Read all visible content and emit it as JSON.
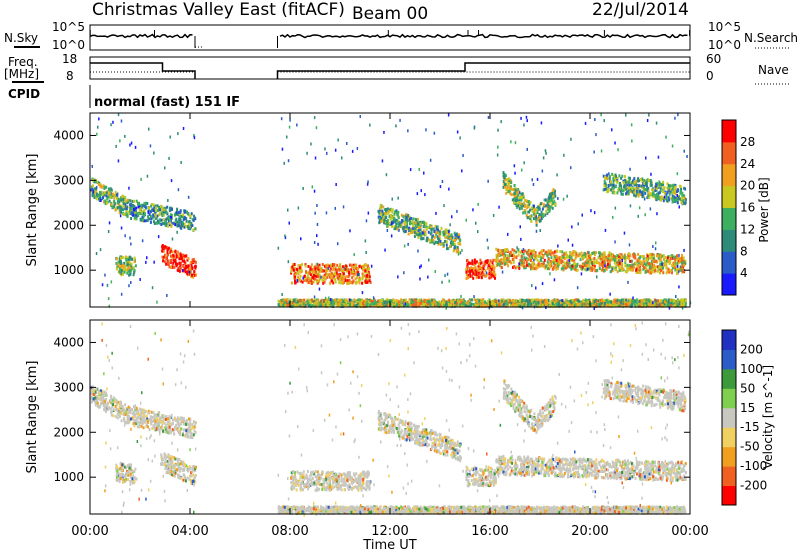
{
  "header": {
    "title": "Christmas Valley East (fitACF)",
    "beam": "Beam 00",
    "date": "22/Jul/2014"
  },
  "noise_panel": {
    "left_label": "N.Sky",
    "left_ticks": [
      "10^5",
      "10^0"
    ],
    "right_label": "N.Search",
    "right_ticks": [
      "10^5",
      "10^0"
    ]
  },
  "freq_panel": {
    "left_label_1": "Freq.",
    "left_label_2": "[MHz]",
    "left_ticks": [
      "18",
      "8"
    ],
    "right_label": "Nave",
    "right_ticks": [
      "60",
      "0"
    ]
  },
  "cpid_panel": {
    "label": "CPID",
    "mode_text": "normal (fast) 151 IF"
  },
  "chart_data": [
    {
      "type": "heatmap",
      "title": "",
      "xlabel": "Time UT",
      "ylabel": "Slant Range [km]",
      "xlim": [
        "00:00",
        "24:00"
      ],
      "ylim": [
        180,
        4500
      ],
      "x_ticks": [
        "00:00",
        "04:00",
        "08:00",
        "12:00",
        "16:00",
        "20:00",
        "00:00"
      ],
      "y_ticks": [
        "1000",
        "2000",
        "3000",
        "4000"
      ],
      "colorbar": {
        "label": "Power [dB]",
        "ticks": [
          "4",
          "8",
          "12",
          "16",
          "20",
          "24",
          "28"
        ],
        "colors": [
          "#1a1aff",
          "#2a5cc8",
          "#2e8b7a",
          "#3cb060",
          "#c8c820",
          "#f0a020",
          "#f06020",
          "#ff0000"
        ]
      },
      "data_gap_hours": [
        4.2,
        7.5
      ],
      "echo_bands": [
        {
          "t": [
            0.0,
            1.5
          ],
          "r": [
            2900,
            2400
          ],
          "level": 0.45
        },
        {
          "t": [
            1.5,
            4.2
          ],
          "r": [
            2400,
            2100
          ],
          "level": 0.35
        },
        {
          "t": [
            1.0,
            1.8
          ],
          "r": [
            1150,
            1100
          ],
          "level": 0.5
        },
        {
          "t": [
            2.8,
            4.2
          ],
          "r": [
            1400,
            1050
          ],
          "level": 0.9
        },
        {
          "t": [
            8.0,
            11.2
          ],
          "r": [
            950,
            950
          ],
          "level": 0.75
        },
        {
          "t": [
            11.5,
            14.8
          ],
          "r": [
            2300,
            1600
          ],
          "level": 0.45
        },
        {
          "t": [
            15.0,
            16.2
          ],
          "r": [
            1050,
            1050
          ],
          "level": 0.85
        },
        {
          "t": [
            16.2,
            23.8
          ],
          "r": [
            1300,
            1150
          ],
          "level": 0.65
        },
        {
          "t": [
            16.5,
            17.8
          ],
          "r": [
            3000,
            2200
          ],
          "level": 0.5
        },
        {
          "t": [
            17.8,
            18.6
          ],
          "r": [
            2200,
            2700
          ],
          "level": 0.45
        },
        {
          "t": [
            20.5,
            23.8
          ],
          "r": [
            3000,
            2700
          ],
          "level": 0.4
        },
        {
          "t": [
            7.5,
            23.8
          ],
          "r": [
            300,
            300
          ],
          "level": 0.55
        }
      ]
    },
    {
      "type": "heatmap",
      "title": "",
      "xlabel": "Time UT",
      "ylabel": "Slant Range [km]",
      "xlim": [
        "00:00",
        "24:00"
      ],
      "ylim": [
        180,
        4500
      ],
      "x_ticks": [
        "00:00",
        "04:00",
        "08:00",
        "12:00",
        "16:00",
        "20:00",
        "00:00"
      ],
      "y_ticks": [
        "1000",
        "2000",
        "3000",
        "4000"
      ],
      "colorbar": {
        "label": "Velocity [m s^-1]",
        "ticks": [
          "200",
          "100",
          "50",
          "15",
          "-15",
          "-50",
          "-100",
          "-200"
        ],
        "colors": [
          "#2030c0",
          "#2a5cc8",
          "#3c9a3c",
          "#80d050",
          "#c8c8c0",
          "#f0d060",
          "#f0a020",
          "#f06020",
          "#ff0000"
        ]
      },
      "data_gap_hours": [
        4.2,
        7.5
      ]
    }
  ]
}
